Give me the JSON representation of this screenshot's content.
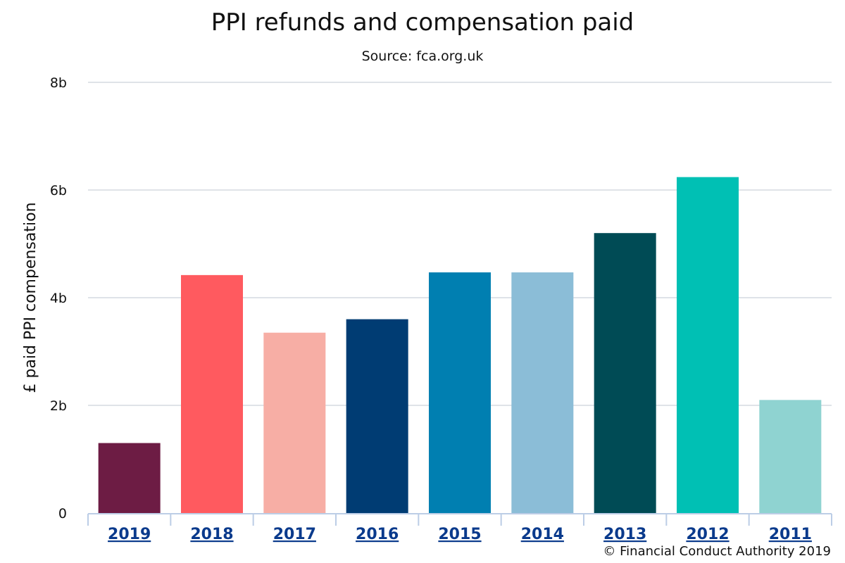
{
  "chart_data": {
    "type": "bar",
    "title": "PPI refunds and compensation paid",
    "subtitle": "Source: fca.org.uk",
    "xlabel": "",
    "ylabel": "£ paid PPI compensation",
    "categories": [
      "2019",
      "2018",
      "2017",
      "2016",
      "2015",
      "2014",
      "2013",
      "2012",
      "2011"
    ],
    "values": [
      1.3,
      4.42,
      3.35,
      3.6,
      4.47,
      4.47,
      5.2,
      6.24,
      2.1
    ],
    "value_unit": "billion £",
    "colors": [
      "#6d1c44",
      "#ff5a5f",
      "#f7aea5",
      "#003c73",
      "#007fb1",
      "#8bbdd7",
      "#004b55",
      "#00c0b4",
      "#8fd3d1"
    ],
    "ylim": [
      0,
      8
    ],
    "yticks": [
      "0",
      "2b",
      "4b",
      "6b",
      "8b"
    ],
    "ytick_values": [
      0,
      2,
      4,
      6,
      8
    ],
    "grid": true,
    "legend": "none",
    "category_label_color": "#0a3a8c",
    "category_labels_linked": true
  },
  "footer": {
    "copyright": "© Financial Conduct Authority 2019"
  }
}
